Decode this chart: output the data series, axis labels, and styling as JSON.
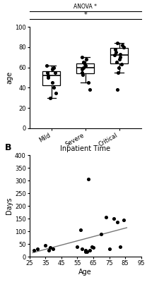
{
  "panel_A": {
    "anova_label": "ANOVA *",
    "star_label": "*",
    "ylabel": "age",
    "ylim": [
      0,
      100
    ],
    "yticks": [
      0,
      20,
      40,
      60,
      80,
      100
    ],
    "categories": [
      "Mild",
      "Severe",
      "Critical"
    ],
    "mild_data": [
      30,
      35,
      40,
      45,
      50,
      52,
      55,
      55,
      58,
      60,
      62
    ],
    "severe_data": [
      38,
      45,
      53,
      55,
      58,
      60,
      62,
      63,
      65,
      68,
      70
    ],
    "critical_data": [
      38,
      55,
      60,
      63,
      65,
      68,
      70,
      72,
      73,
      75,
      78,
      80,
      80,
      82,
      84
    ],
    "dot_color": "black",
    "dot_size": 7
  },
  "panel_B": {
    "title": "Inpatient Time",
    "xlabel": "Age",
    "ylabel": "Days",
    "xlim": [
      25,
      95
    ],
    "ylim": [
      0,
      400
    ],
    "xticks": [
      25,
      35,
      45,
      55,
      65,
      75,
      85,
      95
    ],
    "yticks": [
      0,
      50,
      100,
      150,
      200,
      250,
      300,
      350,
      400
    ],
    "scatter_x": [
      28,
      30,
      35,
      37,
      38,
      40,
      55,
      57,
      58,
      60,
      60,
      61,
      62,
      63,
      64,
      65,
      70,
      73,
      75,
      78,
      80,
      82,
      84
    ],
    "scatter_y": [
      25,
      30,
      45,
      25,
      35,
      30,
      40,
      105,
      30,
      20,
      25,
      20,
      305,
      25,
      40,
      35,
      90,
      155,
      30,
      150,
      135,
      40,
      145
    ],
    "dot_color": "black",
    "dot_size": 7,
    "line_color": "#777777"
  },
  "fig_width": 2.08,
  "fig_height": 4.0,
  "dpi": 100,
  "background_color": "#ffffff"
}
